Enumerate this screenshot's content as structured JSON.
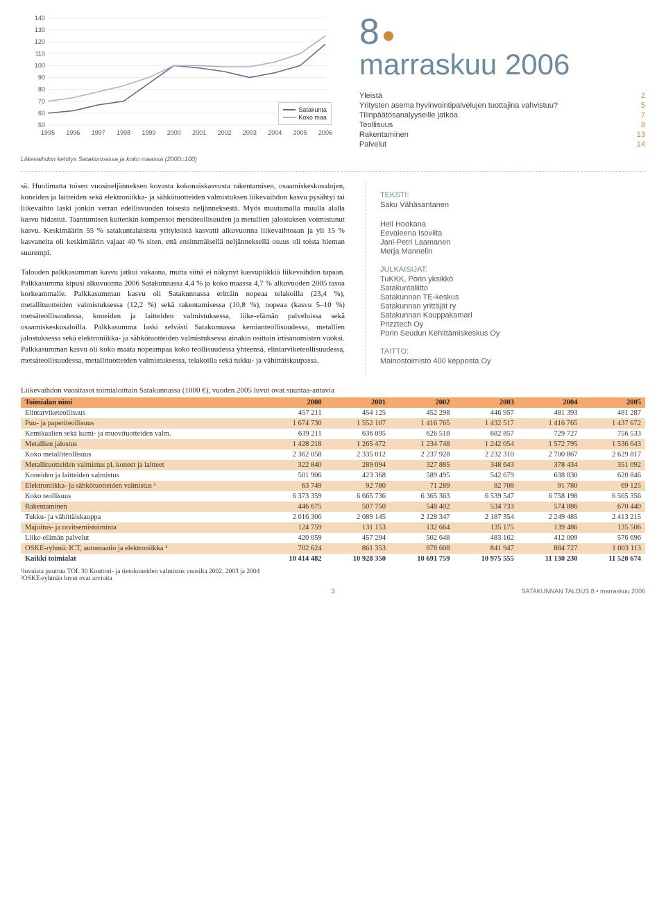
{
  "chart": {
    "type": "line",
    "x_labels": [
      "1995",
      "1996",
      "1997",
      "1998",
      "1999",
      "2000",
      "2001",
      "2002",
      "2003",
      "2004",
      "2005",
      "2006"
    ],
    "ylim": [
      50,
      140
    ],
    "ytick_step": 10,
    "series": [
      {
        "name": "Satakunta",
        "color": "#5b6e8c",
        "values": [
          60,
          62,
          67,
          70,
          85,
          100,
          98,
          95,
          90,
          94,
          100,
          118
        ]
      },
      {
        "name": "Koko maa",
        "color": "#a8b4c8",
        "values": [
          70,
          73,
          78,
          83,
          90,
          100,
          100,
          99,
          99,
          103,
          110,
          125
        ]
      }
    ],
    "caption": "Liikevaihdon kehitys Satakunnassa ja koko maassa (2000=100)",
    "grid_color": "#e0e0e0",
    "axis_color": "#888",
    "label_fontsize": 9
  },
  "issue": {
    "number": "8",
    "title": "marraskuu 2006"
  },
  "toc": [
    {
      "label": "Yleistä",
      "page": "2"
    },
    {
      "label": "Yritysten asema hyvinvointipalvelujen tuottajina vahvistuu?",
      "page": "5"
    },
    {
      "label": "Tilinpäätösanalyyseille jatkoa",
      "page": "7"
    },
    {
      "label": "Teollisuus",
      "page": "8"
    },
    {
      "label": "Rakentaminen",
      "page": "13"
    },
    {
      "label": "Palvelut",
      "page": "14"
    }
  ],
  "body": {
    "p1": "sä. Huolimatta toisen vuosineljänneksen kovasta kokonaiskasvusta rakentamisen, osaamiskeskusalojen, koneiden ja laitteiden sekä elektroniikka- ja sähkötuotteiden valmistuksen liikevaihdon kasvu pysähtyi tai liikevaihto laski jonkin verran edellisvuoden toisesta neljänneksestä. Myös muutamalla muulla alalla kasvu hidastui. Taantumisen kuitenkin kompensoi metsäteollisuuden ja metallien jalostuksen voimistunut kasvu. Keskimäärin 55 % satakuntalaisista yrityksistä kasvatti alkuvuonna liikevaihtoaan ja yli 15 % kasvaneita oli keskimäärin vajaat 40 % siten, että ensimmäisellä neljänneksellä osuus oli toista hieman suurempi.",
    "p2": "Talouden palkkasumman kasvu jatkui vakaana, mutta siinä ei näkynyt kasvupiikkiä liikevaihdon tapaan. Palkkasumma kipusi alkuvuonna 2006 Satakunnassa 4,4 % ja koko maassa 4,7 % alkuvuoden 2005 tasoa korkeammalle. Palkkasumman kasvu oli Satakunnassa erittäin nopeaa telakoilla (23,4 %), metallituotteiden valmistuksessa (12,2 %) sekä rakentamisessa (10,8 %), nopeaa (kasvu 5–10 %) metsäteollisuudessa, koneiden ja laitteiden valmistuksessa, liike-elämän palveluissa sekä osaamiskeskusaloilla. Palkkasumma laski selvästi Satakunnassa kemianteollisuudessa, metallien jalostuksessa sekä elektroniikka- ja sähkötuotteiden valmistuksessa ainakin osittain irtisanomisten vuoksi. Palkkasumman kasvu oli koko maata nopeampaa koko teollisuudessa yhteensä, elintarviketeollisuudessa, metsäteollisuudessa, metallituotteiden valmistuksessa, telakoilla sekä tukku- ja vähittäiskaupassa."
  },
  "meta": {
    "teksti_head": "TEKSTI:",
    "teksti": [
      "Saku Vähäsantanen"
    ],
    "authors": [
      "Heli Hookana",
      "Eevaleena Isoviita",
      "Jani-Petri Laamanen",
      "Merja Mannelin"
    ],
    "julk_head": "JULKAISIJAT:",
    "julkaisijat": [
      "TuKKK, Porin yksikkö",
      "Satakuntaliitto",
      "Satakunnan TE-keskus",
      "Satakunnan yrittäjät ry",
      "Satakunnan Kauppakamari",
      "Prizztech Oy",
      "Porin Seudun Kehittämiskeskus Oy"
    ],
    "taitto_head": "TAITTO:",
    "taitto": [
      "Mainostoimisto 400 kepposta Oy"
    ]
  },
  "table": {
    "caption": "Liikevaihdon vuositasot toimialoittain Satakunnassa (1000 €), vuoden 2005 luvut ovat suuntaa-antavia",
    "columns": [
      "Toimialan nimi",
      "2000",
      "2001",
      "2002",
      "2003",
      "2004",
      "2005"
    ],
    "rows": [
      {
        "alt": false,
        "cells": [
          "Elintarviketeollisuus",
          "457 211",
          "454 125",
          "452 298",
          "446 957",
          "481 393",
          "481 287"
        ]
      },
      {
        "alt": true,
        "cells": [
          "Puu- ja paperiteollisuus",
          "1 674 730",
          "1 552 107",
          "1 416 765",
          "1 432 517",
          "1 416 765",
          "1 437 672"
        ]
      },
      {
        "alt": false,
        "cells": [
          "Kemikaalien sekä kumi- ja muovituotteiden valm.",
          "639 211",
          "636 095",
          "626 518",
          "682 857",
          "729 727",
          "756 533"
        ]
      },
      {
        "alt": true,
        "cells": [
          "Metallien jalostus",
          "1 428 218",
          "1 265 472",
          "1 234 748",
          "1 242 054",
          "1 572 795",
          "1 536 643"
        ]
      },
      {
        "alt": false,
        "cells": [
          "Koko metalliteollisuus",
          "2 362 058",
          "2 335 012",
          "2 237 928",
          "2 232 310",
          "2 700 867",
          "2 629 817"
        ]
      },
      {
        "alt": true,
        "cells": [
          "Metallituotteiden valmistus pl. koneet ja laitteet",
          "322 840",
          "289 094",
          "327 885",
          "348 643",
          "378 434",
          "351 092"
        ]
      },
      {
        "alt": false,
        "cells": [
          "Koneiden ja laitteiden valmistus",
          "501 906",
          "423 368",
          "589 495",
          "542 679",
          "638 830",
          "620 846"
        ]
      },
      {
        "alt": true,
        "cells": [
          "Elektroniikka- ja sähkötuotteiden valmistus ¹",
          "63 749",
          "92 780",
          "71 289",
          "82 708",
          "91 780",
          "69 125"
        ]
      },
      {
        "alt": false,
        "cells": [
          "Koko teollisuus",
          "6 373 359",
          "6 665 736",
          "6 365 363",
          "6 539 547",
          "6 758 198",
          "6 565 356"
        ]
      },
      {
        "alt": true,
        "cells": [
          "Rakentaminen",
          "446 675",
          "507 750",
          "548 402",
          "534 733",
          "574 886",
          "670 440"
        ]
      },
      {
        "alt": false,
        "cells": [
          "Tukku- ja vähittäiskauppa",
          "2 016 306",
          "2 089 145",
          "2 128 347",
          "2 187 354",
          "2 249 485",
          "2 413 215"
        ]
      },
      {
        "alt": true,
        "cells": [
          "Majoitus- ja ravitsemistoiminta",
          "124 759",
          "131 153",
          "132 664",
          "135 175",
          "139 486",
          "135 506"
        ]
      },
      {
        "alt": false,
        "cells": [
          "Liike-elämän palvelut",
          "420 059",
          "457 294",
          "502 648",
          "483 162",
          "412 009",
          "576 696"
        ]
      },
      {
        "alt": true,
        "cells": [
          "OSKE-ryhmä: ICT, automaatio ja elektroniikka ²",
          "702 624",
          "861 353",
          "878 608",
          "841 947",
          "884 727",
          "1 003 113"
        ]
      },
      {
        "alt": false,
        "bold": true,
        "cells": [
          "Kaikki toimialat",
          "10 414 482",
          "10 928 350",
          "10 691 759",
          "10 975 555",
          "11 130 230",
          "11 520 674"
        ]
      }
    ],
    "footnotes": [
      "¹luvuista puuttuu TOL 30 Konttori- ja tietokoneiden valmistus vuosilta 2002, 2003 ja 2004",
      "²OSKE-ryhmän luvut ovat arvioita"
    ]
  },
  "footer": {
    "page": "3",
    "right": "SATAKUNNAN TALOUS 8 • marraskuu 2006"
  }
}
